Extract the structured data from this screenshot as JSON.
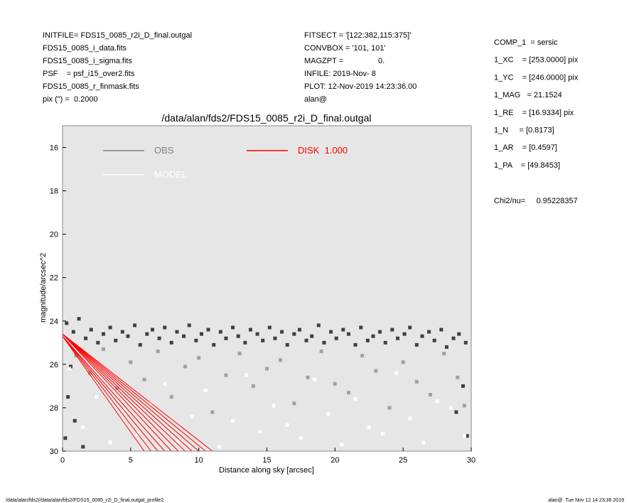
{
  "chart_data": {
    "type": "scatter",
    "title": "/data/alan/fds2/FDS15_0085_r2i_D_final.outgal",
    "x_label": "Distance along sky [arcsec]",
    "y_label": "magnitude/arcsec^2",
    "info_left": [
      "INITFILE= FDS15_0085_r2i_D_final.outgal",
      "FDS15_0085_i_data.fits",
      "FDS15_0085_i_sigma.fits",
      "PSF    = psf_i15_over2.fits",
      "FDS15_0085_r_finmask.fits",
      "pix (\") =  0.2000"
    ],
    "info_center": [
      "FITSECT = '[122:382,115:375]'",
      "CONVBOX = '101, 101'",
      "MAGZPT =                0.",
      "INFILE: 2019-Nov- 8",
      "PLOT: 12-Nov-2019 14:23:36.00",
      "alan@"
    ],
    "info_right": [
      "COMP_1  = sersic",
      "1_XC    = [253.0000] pix",
      "1_YC    = [246.0000] pix",
      "1_MAG   = 21.1524",
      "1_RE    = [16.9334] pix",
      "1_N     = [0.8173]",
      "1_AR    = [0.4597]",
      "1_PA    = [49.8453]"
    ],
    "chi2": "Chi2/nu=     0.95228357",
    "footer_left": "/data/alan/fds2//data/alan/fds2/FDS15_0085_r2i_D_final.outgal_profile2",
    "footer_right": "alan@  Tue Nov 12 14:23:36 2019",
    "xlim": [
      0,
      30
    ],
    "xticks": [
      0,
      5,
      10,
      15,
      20,
      25,
      30
    ],
    "ylim": [
      15,
      30
    ],
    "yticks": [
      16,
      18,
      20,
      22,
      24,
      26,
      28,
      30
    ],
    "y_inverted": true,
    "background": "#e6e6e6",
    "series": [
      {
        "name": "OBS",
        "color": "#808080",
        "point_color": "#404040",
        "x": [
          0.3,
          0.8,
          1.2,
          1.7,
          2.1,
          2.6,
          3.0,
          3.5,
          3.9,
          4.4,
          4.8,
          5.3,
          5.7,
          6.2,
          6.6,
          7.1,
          7.5,
          8.0,
          8.4,
          8.9,
          9.3,
          9.8,
          10.2,
          10.7,
          11.1,
          11.6,
          12.0,
          12.5,
          12.9,
          13.4,
          13.8,
          14.3,
          14.7,
          15.2,
          15.6,
          16.1,
          16.5,
          17.0,
          17.4,
          17.9,
          18.3,
          18.8,
          19.2,
          19.7,
          20.1,
          20.6,
          21.0,
          21.5,
          21.9,
          22.4,
          22.8,
          23.3,
          23.7,
          24.2,
          24.6,
          25.1,
          25.5,
          26.0,
          26.4,
          26.9,
          27.3,
          27.8,
          28.2,
          28.7,
          29.1,
          29.6,
          0.4,
          0.9,
          0.2,
          1.5,
          29.4,
          28.9,
          29.7,
          0.6
        ],
        "values": [
          24.1,
          24.5,
          23.9,
          24.8,
          24.4,
          25.0,
          24.6,
          24.3,
          24.9,
          24.5,
          24.7,
          24.2,
          25.1,
          24.6,
          24.4,
          24.8,
          24.3,
          25.0,
          24.5,
          24.7,
          24.2,
          24.9,
          24.6,
          24.4,
          25.1,
          24.5,
          24.8,
          24.3,
          24.7,
          25.0,
          24.4,
          24.6,
          24.9,
          24.3,
          24.8,
          24.5,
          25.1,
          24.6,
          24.4,
          24.9,
          24.7,
          24.2,
          25.0,
          24.5,
          24.8,
          24.4,
          24.6,
          25.1,
          24.3,
          24.9,
          24.7,
          24.5,
          25.0,
          24.4,
          24.8,
          24.6,
          24.3,
          25.1,
          24.7,
          24.5,
          24.9,
          24.4,
          25.2,
          24.8,
          24.6,
          25.0,
          27.5,
          28.6,
          29.4,
          29.8,
          27.0,
          28.2,
          29.3,
          26.1
        ]
      },
      {
        "point_color": "#a0a0a0",
        "x": [
          1,
          2,
          3,
          4,
          5,
          6,
          7,
          8,
          9,
          10,
          11,
          12,
          13,
          14,
          15,
          16,
          17,
          18,
          19,
          20,
          21,
          22,
          23,
          24,
          25,
          26,
          27,
          28,
          29,
          29.5
        ],
        "values": [
          25.6,
          26.4,
          25.3,
          27.1,
          25.9,
          26.7,
          25.4,
          27.5,
          26.1,
          25.7,
          28.2,
          26.5,
          25.5,
          27.0,
          26.2,
          25.8,
          27.8,
          26.6,
          25.4,
          26.9,
          27.3,
          25.6,
          26.3,
          28.0,
          25.9,
          26.8,
          27.4,
          25.5,
          26.6,
          27.9
        ]
      },
      {
        "name": "MODEL",
        "color": "#ffffff",
        "point_color": "#ffffff",
        "x": [
          0.5,
          1.5,
          2.5,
          3.5,
          4.5,
          5.5,
          6.5,
          7.5,
          8.5,
          9.5,
          10.5,
          11.5,
          12.5,
          13.5,
          14.5,
          15.5,
          16.5,
          17.5,
          18.5,
          19.5,
          20.5,
          21.5,
          22.5,
          23.5,
          24.5,
          25.5,
          26.5,
          27.5,
          28.5,
          29.5
        ],
        "values": [
          26.2,
          28.9,
          27.5,
          29.6,
          28.1,
          29.2,
          27.8,
          26.9,
          29.5,
          28.4,
          27.2,
          29.8,
          28.6,
          26.5,
          29.1,
          27.9,
          28.8,
          29.4,
          26.7,
          28.3,
          29.7,
          27.6,
          28.9,
          29.2,
          26.4,
          28.5,
          29.6,
          27.7,
          28.0,
          29.3
        ]
      },
      {
        "name": "DISK  1.000",
        "color": "#ff0000",
        "curves": [
          {
            "x": [
              0,
              6.0
            ],
            "values": [
              24.7,
              30
            ]
          },
          {
            "x": [
              0,
              6.5
            ],
            "values": [
              24.7,
              30
            ]
          },
          {
            "x": [
              0,
              7.0
            ],
            "values": [
              24.7,
              30
            ]
          },
          {
            "x": [
              0,
              7.5
            ],
            "values": [
              24.7,
              30
            ]
          },
          {
            "x": [
              0,
              8.0
            ],
            "values": [
              24.6,
              30
            ]
          },
          {
            "x": [
              0,
              8.5
            ],
            "values": [
              24.6,
              30
            ]
          },
          {
            "x": [
              0,
              9.0
            ],
            "values": [
              24.6,
              30
            ]
          },
          {
            "x": [
              0,
              9.5
            ],
            "values": [
              24.6,
              30
            ]
          },
          {
            "x": [
              0,
              10.0
            ],
            "values": [
              24.6,
              30
            ]
          },
          {
            "x": [
              0,
              10.5
            ],
            "values": [
              24.6,
              30
            ]
          },
          {
            "x": [
              0,
              11.0
            ],
            "values": [
              24.6,
              30
            ]
          }
        ]
      }
    ]
  }
}
